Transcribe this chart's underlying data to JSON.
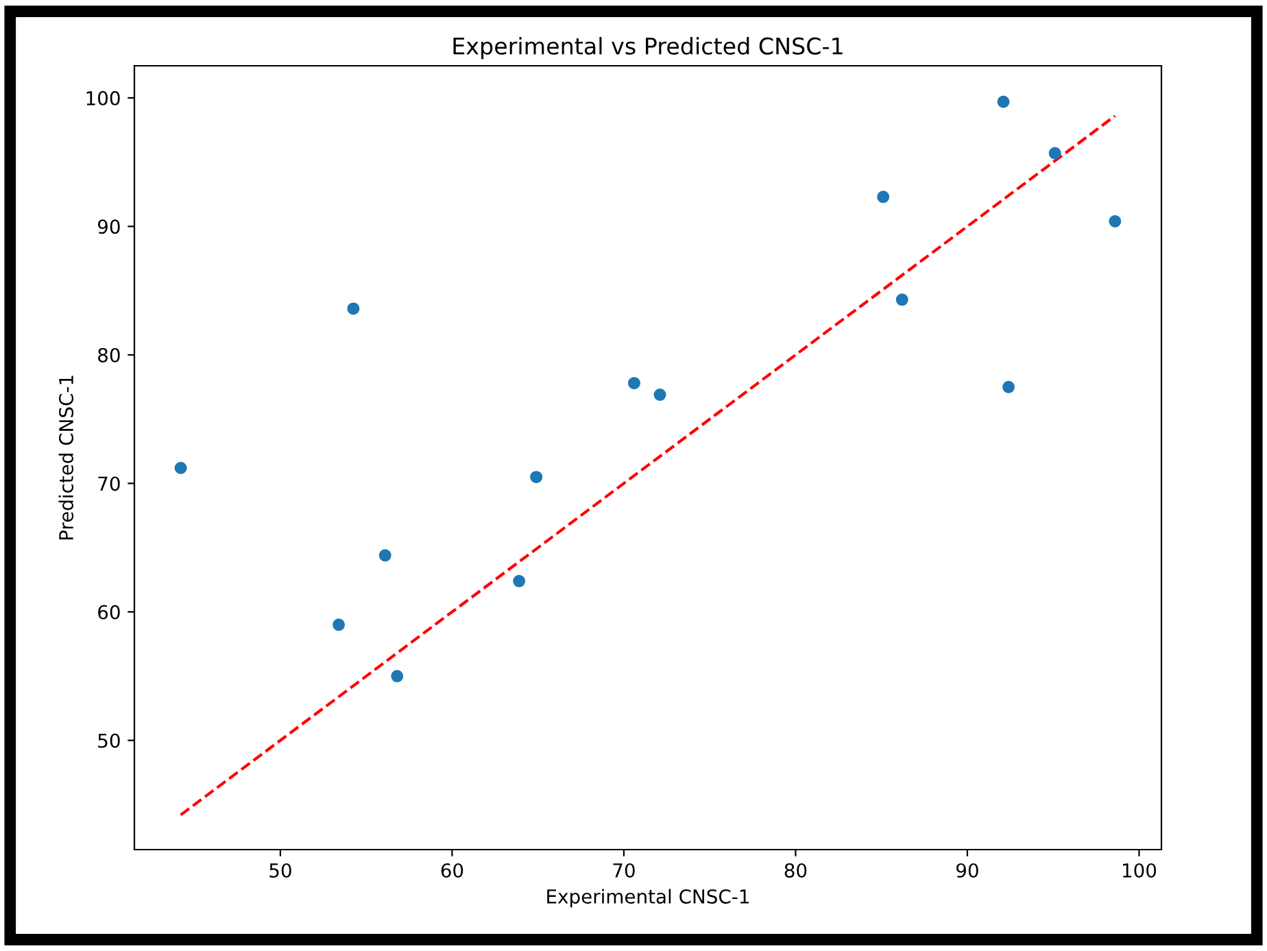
{
  "chart_data": {
    "type": "scatter",
    "title": "Experimental vs Predicted CNSC-1",
    "xlabel": "Experimental CNSC-1",
    "ylabel": "Predicted CNSC-1",
    "series": [
      {
        "color": "#1f77b4",
        "marker": "circle",
        "x": [
          44.2,
          54.25,
          64.9,
          56.1,
          53.4,
          63.9,
          56.8,
          70.6,
          72.1,
          85.1,
          86.2,
          92.1,
          95.1,
          92.4,
          98.6
        ],
        "values": [
          71.2,
          83.6,
          70.5,
          64.4,
          59.0,
          62.4,
          55.0,
          77.8,
          76.9,
          92.3,
          84.3,
          99.7,
          95.7,
          77.5,
          90.4
        ]
      },
      {
        "type": "line",
        "color": "#ff0000",
        "line_style": "dashed",
        "marker": "none",
        "x": [
          44.2,
          98.6
        ],
        "values": [
          44.2,
          98.6
        ]
      }
    ],
    "xlim": [
      41.5,
      101.3
    ],
    "ylim": [
      41.5,
      102.5
    ],
    "xticks": [
      50,
      60,
      70,
      80,
      90,
      100
    ],
    "yticks": [
      50,
      60,
      70,
      80,
      90,
      100
    ],
    "grid": false
  }
}
